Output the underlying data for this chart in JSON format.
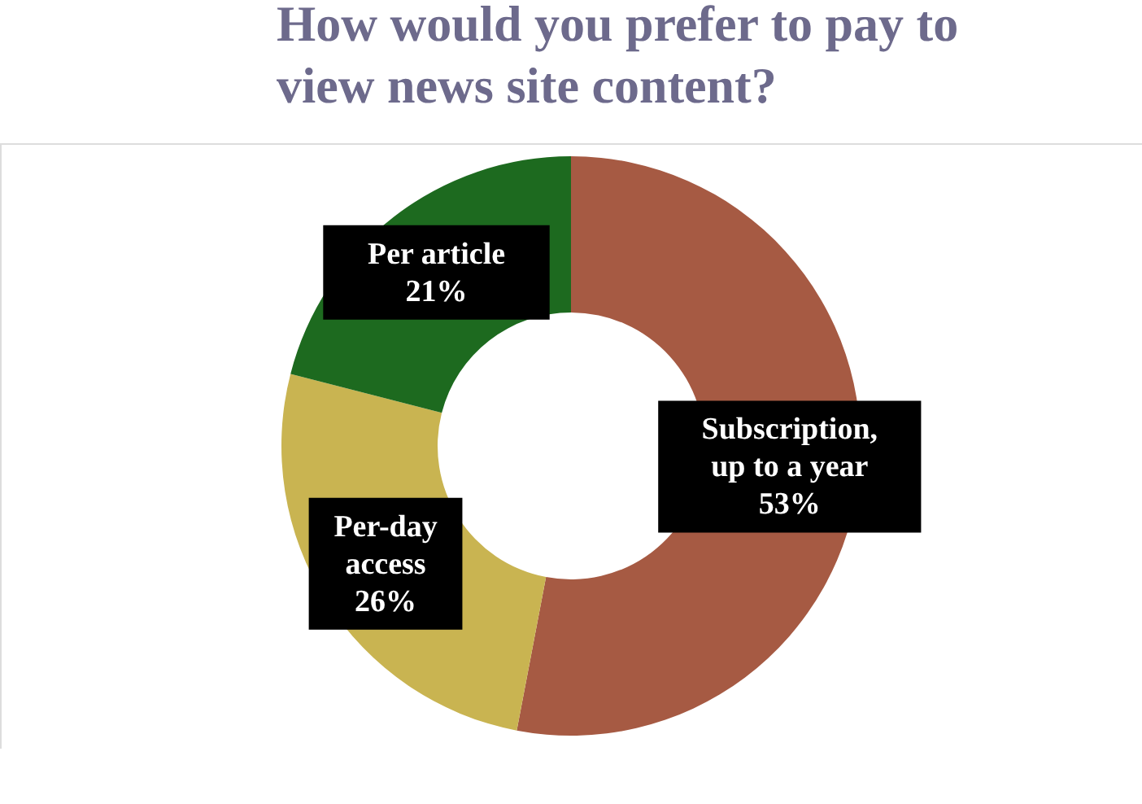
{
  "chart_data": {
    "type": "donut",
    "title": "How would you prefer to pay to view news site content?",
    "categories": [
      "Subscription, up to a year",
      "Per-day access",
      "Per article"
    ],
    "values": [
      53,
      26,
      21
    ],
    "value_labels": [
      "53%",
      "26%",
      "21%"
    ],
    "colors": [
      "#a65a43",
      "#c9b451",
      "#1d6a1f"
    ],
    "legend": false
  }
}
